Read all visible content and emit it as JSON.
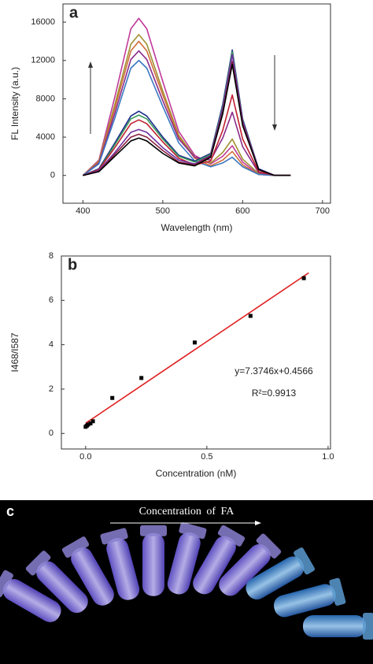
{
  "chart_data": [
    {
      "type": "line",
      "panel_label": "a",
      "x_label": "Wavelength (nm)",
      "y_label": "FL Intensity (a.u.)",
      "x": [
        400,
        420,
        440,
        460,
        470,
        480,
        500,
        520,
        540,
        560,
        575,
        587,
        600,
        620,
        640,
        660
      ],
      "xlim": [
        375,
        710
      ],
      "xticks": [
        400,
        500,
        600,
        700
      ],
      "ylim": [
        -2900,
        17900
      ],
      "yticks": [
        0,
        4000,
        8000,
        12000,
        16000
      ],
      "series": [
        {
          "color": "#c0399a",
          "values": [
            0,
            1600,
            8200,
            15300,
            16400,
            15300,
            9800,
            4600,
            2100,
            1200,
            2000,
            3100,
            1400,
            100,
            0,
            0
          ]
        },
        {
          "color": "#a09030",
          "values": [
            0,
            1500,
            7400,
            13700,
            14700,
            13700,
            8800,
            4200,
            1900,
            1300,
            2400,
            3800,
            1700,
            200,
            0,
            0
          ]
        },
        {
          "color": "#d0703a",
          "values": [
            0,
            1400,
            7000,
            13000,
            14000,
            13000,
            8400,
            4000,
            1800,
            1000,
            1600,
            2500,
            1100,
            100,
            0,
            0
          ]
        },
        {
          "color": "#8a2b8a",
          "values": [
            0,
            1300,
            6500,
            12100,
            13000,
            12100,
            7800,
            3800,
            1900,
            1600,
            3900,
            6600,
            3000,
            300,
            0,
            0
          ]
        },
        {
          "color": "#3a78c0",
          "values": [
            0,
            1200,
            6000,
            11200,
            12000,
            11200,
            7200,
            3400,
            1500,
            900,
            1300,
            1900,
            900,
            100,
            0,
            0
          ]
        },
        {
          "color": "#1a2a8a",
          "values": [
            0,
            700,
            3400,
            6200,
            6700,
            6200,
            4000,
            2100,
            1500,
            2300,
            7400,
            13100,
            5900,
            700,
            0,
            0
          ]
        },
        {
          "color": "#3a9a5a",
          "values": [
            0,
            600,
            3200,
            5900,
            6300,
            5900,
            3800,
            2000,
            1400,
            2200,
            7200,
            12900,
            5800,
            600,
            0,
            0
          ]
        },
        {
          "color": "#c02030",
          "values": [
            0,
            600,
            2900,
            5400,
            5800,
            5400,
            3500,
            1800,
            1100,
            1500,
            4700,
            8400,
            3800,
            400,
            0,
            0
          ]
        },
        {
          "color": "#7030a0",
          "values": [
            0,
            500,
            2400,
            4500,
            4800,
            4500,
            2900,
            1600,
            1200,
            2100,
            7000,
            12600,
            5700,
            600,
            0,
            0
          ]
        },
        {
          "color": "#8a2040",
          "values": [
            0,
            400,
            2200,
            4000,
            4300,
            4000,
            2600,
            1400,
            1100,
            2000,
            6600,
            11900,
            5400,
            600,
            0,
            0
          ]
        },
        {
          "color": "#000000",
          "values": [
            0,
            400,
            2000,
            3600,
            3900,
            3600,
            2300,
            1300,
            1000,
            1900,
            6400,
            11600,
            5200,
            600,
            0,
            0
          ]
        }
      ]
    },
    {
      "type": "scatter",
      "panel_label": "b",
      "x_label": "Concentration (nM)",
      "y_label": "I468/I587",
      "x": [
        0,
        0.005,
        0.01,
        0.02,
        0.03,
        0.11,
        0.23,
        0.45,
        0.68,
        0.9
      ],
      "values": [
        0.3,
        0.35,
        0.4,
        0.45,
        0.55,
        1.6,
        2.5,
        4.1,
        5.3,
        7.0
      ],
      "color": "#000000",
      "fit": {
        "x": [
          0,
          0.92
        ],
        "values": [
          0.46,
          7.24
        ],
        "color": "#e02020"
      },
      "xlim": [
        -0.1,
        1.01
      ],
      "xticks": [
        {
          "value": 0,
          "label": "0.0"
        },
        0.5,
        {
          "value": 1,
          "label": "1.0"
        }
      ],
      "ylim": [
        -0.7,
        8
      ],
      "yticks": [
        0,
        2,
        4,
        6,
        8
      ],
      "annotations": [
        "y=7.3746x+0.4566",
        "R²=0.9913"
      ]
    }
  ],
  "photo": {
    "panel_label": "c",
    "caption": "Concentration of FA"
  }
}
